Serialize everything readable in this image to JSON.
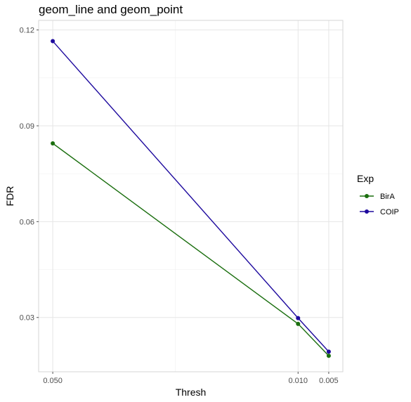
{
  "chart_data": {
    "type": "line",
    "title": "geom_line and geom_point",
    "xlabel": "Thresh",
    "ylabel": "FDR",
    "x_scale": "reverse",
    "x_ticks": [
      "0.050",
      "0.010",
      "0.005"
    ],
    "y_ticks": [
      "0.03",
      "0.06",
      "0.09",
      "0.12"
    ],
    "ylim": [
      0.013,
      0.123
    ],
    "xlim": [
      0.0523,
      0.0027
    ],
    "grid": true,
    "legend": {
      "title": "Exp",
      "position": "right"
    },
    "series": [
      {
        "name": "BirA",
        "color": "#1a6e0e",
        "x": [
          0.05,
          0.01,
          0.005
        ],
        "y": [
          0.0845,
          0.028,
          0.018
        ]
      },
      {
        "name": "COIP",
        "color": "#1e0a9e",
        "x": [
          0.05,
          0.01,
          0.005
        ],
        "y": [
          0.1165,
          0.0298,
          0.0193
        ]
      }
    ]
  }
}
